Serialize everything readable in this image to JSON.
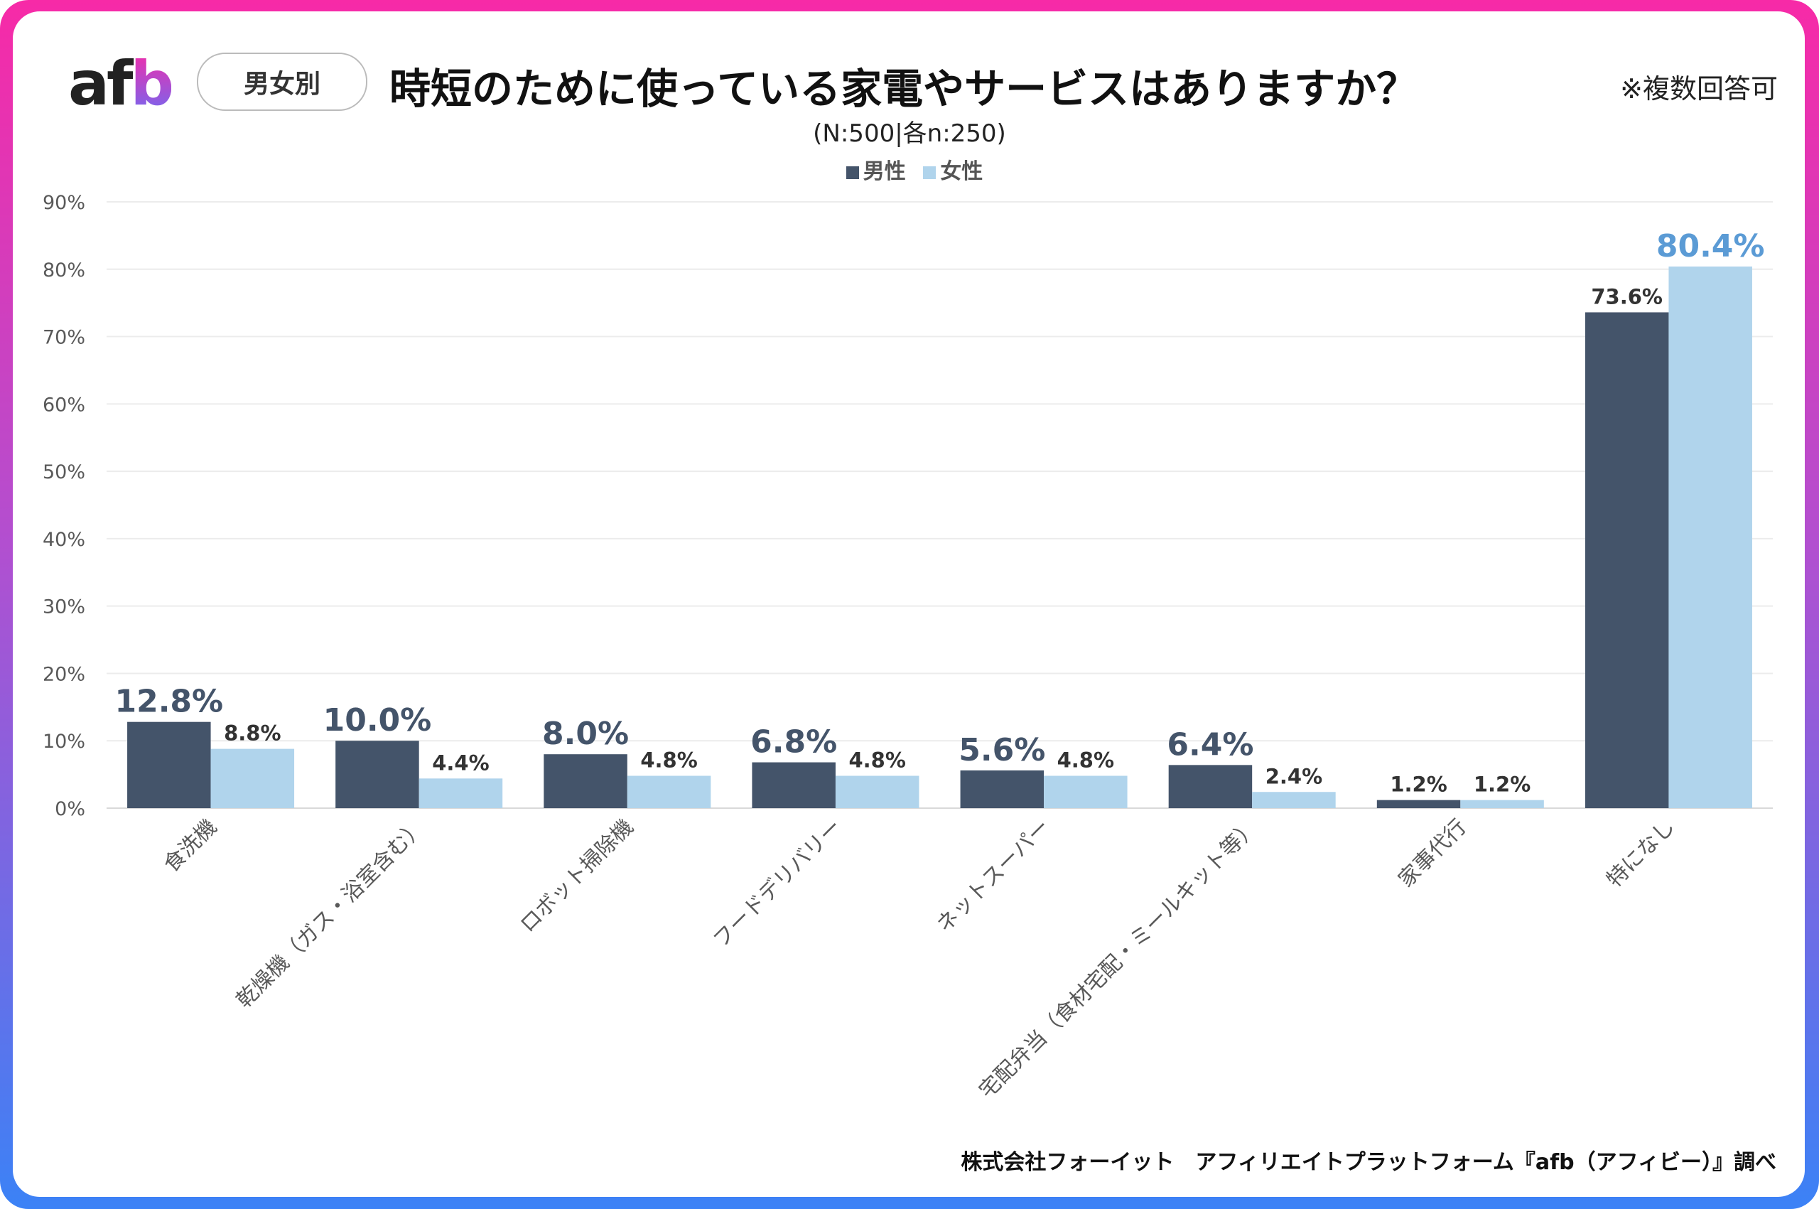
{
  "header": {
    "logo": "afb",
    "badge": "男女別",
    "title": "時短のために使っている家電やサービスはありますか？",
    "note": "※複数回答可",
    "subtitle": "(N:500|各n:250)"
  },
  "footer": {
    "credit": "株式会社フォーイット　アフィリエイトプラットフォーム『afb（アフィビー）』調べ"
  },
  "colors": {
    "male": "#44546a",
    "female": "#b0d4ec",
    "highlight_female": "#5b9bd5"
  },
  "chart_data": {
    "type": "bar",
    "categories": [
      "食洗機",
      "乾燥機（ガス・浴室含む）",
      "ロボット掃除機",
      "フードデリバリー",
      "ネットスーパー",
      "宅配弁当（食材宅配・ミールキット等）",
      "家事代行",
      "特になし"
    ],
    "series": [
      {
        "name": "男性",
        "values": [
          12.8,
          10.0,
          8.0,
          6.8,
          5.6,
          6.4,
          1.2,
          73.6
        ]
      },
      {
        "name": "女性",
        "values": [
          8.8,
          4.4,
          4.8,
          4.8,
          4.8,
          2.4,
          1.2,
          80.4
        ]
      }
    ],
    "data_labels": {
      "男性": [
        "12.8%",
        "10.0%",
        "8.0%",
        "6.8%",
        "5.6%",
        "6.4%",
        "1.2%",
        "73.6%"
      ],
      "女性": [
        "8.8%",
        "4.4%",
        "4.8%",
        "4.8%",
        "4.8%",
        "2.4%",
        "1.2%",
        "80.4%"
      ]
    },
    "yticks": [
      "0%",
      "10%",
      "20%",
      "30%",
      "40%",
      "50%",
      "60%",
      "70%",
      "80%",
      "90%"
    ],
    "ylim": [
      0,
      90
    ],
    "grid": true,
    "legend": "top-center"
  }
}
